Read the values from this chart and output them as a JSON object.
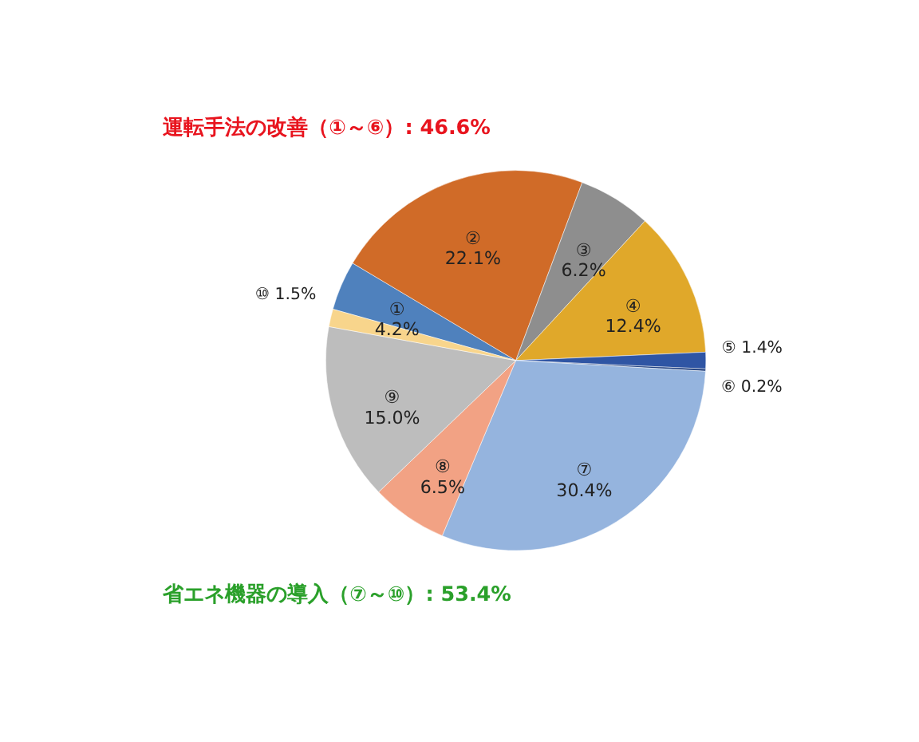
{
  "chart_data": {
    "type": "pie",
    "categories": [
      "①",
      "②",
      "③",
      "④",
      "⑤",
      "⑥",
      "⑦",
      "⑧",
      "⑨",
      "⑩"
    ],
    "values": [
      4.2,
      22.1,
      6.2,
      12.4,
      1.4,
      0.2,
      30.4,
      6.5,
      15.0,
      1.5
    ],
    "value_labels": [
      "4.2%",
      "22.1%",
      "6.2%",
      "12.4%",
      "1.4%",
      "0.2%",
      "30.4%",
      "6.5%",
      "15.0%",
      "1.5%"
    ],
    "colors": [
      "#4f81bd",
      "#d06b28",
      "#8e8e8e",
      "#e0a82a",
      "#2f55a4",
      "#1f3f7f",
      "#95b4de",
      "#f2a284",
      "#bdbdbd",
      "#f8d58c"
    ],
    "annotations": [
      "運転手法の改善（①～⑥）: 46.6%",
      "省エネ機器の導入（⑦～⑩）: 53.4%"
    ],
    "legend": false
  }
}
